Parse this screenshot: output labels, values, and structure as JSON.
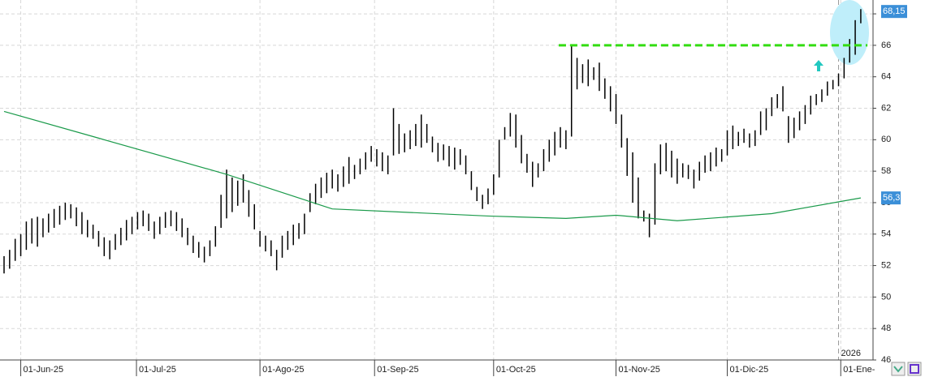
{
  "chart_data": {
    "type": "ohlc",
    "high": [
      52.6,
      53.0,
      53.7,
      54.0,
      54.8,
      55.0,
      55.1,
      55.0,
      55.3,
      55.6,
      55.8,
      56.0,
      55.9,
      55.7,
      55.4,
      54.9,
      54.6,
      54.2,
      53.8,
      53.6,
      54.0,
      54.4,
      54.9,
      55.1,
      55.4,
      55.5,
      55.3,
      54.8,
      55.1,
      55.4,
      55.5,
      55.4,
      55.0,
      54.4,
      53.9,
      53.5,
      53.2,
      53.6,
      54.5,
      56.5,
      58.1,
      57.6,
      57.4,
      57.8,
      56.8,
      55.9,
      54.2,
      53.9,
      53.6,
      53.0,
      53.9,
      54.2,
      54.6,
      54.7,
      55.3,
      56.6,
      57.2,
      57.6,
      57.9,
      58.1,
      57.8,
      58.3,
      58.9,
      58.4,
      58.8,
      59.2,
      59.6,
      59.4,
      59.2,
      59.0,
      62.0,
      61.0,
      60.4,
      60.6,
      61.0,
      61.6,
      61.0,
      60.2,
      59.8,
      59.7,
      59.6,
      59.5,
      59.4,
      59.0,
      58.0,
      57.0,
      56.5,
      56.9,
      57.8,
      60.0,
      60.8,
      61.7,
      61.6,
      60.3,
      59.1,
      58.6,
      58.5,
      59.4,
      60.0,
      60.5,
      60.8,
      60.6,
      66.0,
      65.2,
      64.8,
      65.1,
      64.6,
      64.9,
      63.9,
      63.4,
      62.9,
      61.6,
      60.1,
      59.2,
      57.6,
      55.5,
      55.3,
      58.5,
      59.7,
      59.8,
      59.3,
      58.8,
      58.5,
      58.4,
      58.1,
      58.6,
      59.0,
      59.2,
      59.5,
      59.4,
      60.6,
      60.9,
      60.5,
      60.7,
      60.4,
      60.6,
      61.8,
      62.0,
      62.7,
      62.9,
      63.4,
      61.5,
      61.4,
      61.8,
      62.2,
      62.8,
      62.9,
      63.2,
      63.7,
      63.8,
      64.2,
      65.2,
      66.4,
      67.6,
      68.3
    ],
    "low": [
      51.5,
      51.8,
      52.3,
      52.6,
      53.0,
      53.4,
      53.2,
      53.8,
      54.1,
      54.4,
      54.6,
      54.9,
      55.0,
      54.5,
      54.0,
      53.8,
      53.7,
      53.2,
      52.6,
      52.4,
      53.0,
      53.3,
      53.6,
      54.0,
      54.3,
      54.5,
      54.2,
      53.7,
      54.0,
      54.4,
      54.5,
      54.2,
      53.8,
      53.3,
      52.8,
      52.5,
      52.2,
      52.6,
      53.2,
      54.4,
      55.0,
      55.4,
      55.8,
      56.0,
      55.1,
      54.3,
      53.2,
      52.9,
      52.6,
      51.7,
      52.5,
      53.0,
      53.3,
      53.7,
      54.0,
      55.4,
      55.9,
      56.3,
      56.6,
      56.9,
      56.7,
      57.0,
      57.2,
      57.5,
      57.8,
      58.1,
      58.6,
      58.3,
      58.0,
      57.8,
      59.0,
      59.1,
      59.2,
      59.4,
      59.6,
      59.5,
      59.8,
      59.2,
      58.6,
      58.7,
      58.3,
      58.1,
      58.4,
      57.8,
      56.8,
      56.1,
      55.6,
      55.9,
      56.5,
      57.6,
      60.0,
      60.2,
      59.5,
      58.5,
      57.9,
      57.0,
      57.6,
      58.0,
      58.6,
      59.0,
      59.5,
      59.4,
      60.2,
      63.2,
      63.6,
      63.4,
      63.8,
      63.1,
      62.6,
      61.8,
      61.0,
      59.5,
      57.7,
      56.0,
      55.0,
      54.8,
      53.8,
      54.6,
      57.8,
      58.0,
      57.6,
      57.2,
      57.6,
      57.5,
      56.9,
      57.4,
      57.9,
      58.0,
      58.3,
      58.6,
      59.0,
      59.4,
      59.6,
      59.8,
      59.5,
      59.6,
      60.3,
      60.6,
      61.5,
      62.0,
      61.8,
      59.8,
      60.1,
      60.6,
      61.0,
      61.6,
      62.2,
      62.4,
      62.8,
      63.2,
      63.4,
      63.9,
      64.9,
      65.4,
      67.4
    ],
    "color": "#000000",
    "moving_average": {
      "x": [
        0,
        17,
        40,
        59,
        87,
        101,
        110,
        121,
        138,
        154
      ],
      "values": [
        61.8,
        60.1,
        57.8,
        55.6,
        55.15,
        55.0,
        55.2,
        54.85,
        55.3,
        56.3
      ],
      "color": "#1a9a4a",
      "value": 56.3,
      "label": "56,3"
    },
    "last_price": {
      "value": 68.15,
      "label": "68,15"
    },
    "resistance": {
      "value": 66,
      "x": [
        99.7,
        155.2
      ],
      "color": "#33dd11"
    },
    "year_marker": {
      "x": 150,
      "label": "2026"
    },
    "xlim": [
      -0.73,
      156.2
    ],
    "xticks": [
      {
        "value": 3,
        "label": "01-Jun-25"
      },
      {
        "value": 23.8,
        "label": "01-Jul-25"
      },
      {
        "value": 46,
        "label": "01-Ago-25"
      },
      {
        "value": 66.6,
        "label": "01-Sep-25"
      },
      {
        "value": 88,
        "label": "01-Oct-25"
      },
      {
        "value": 110,
        "label": "01-Nov-25"
      },
      {
        "value": 130,
        "label": "01-Dic-25"
      },
      {
        "value": 150.4,
        "label": "01-Ene-"
      }
    ],
    "ylim": [
      46,
      68.88
    ],
    "yticks": [
      46,
      48,
      50,
      52,
      54,
      56,
      58,
      60,
      62,
      64,
      66,
      68
    ],
    "grid": true
  }
}
